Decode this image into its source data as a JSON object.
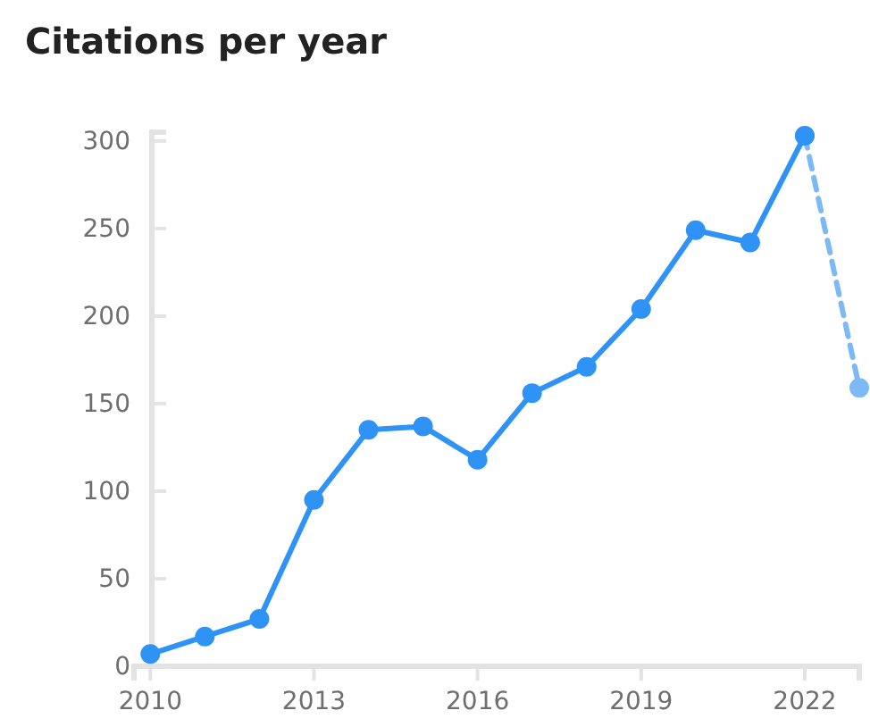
{
  "chart_data": {
    "type": "line",
    "title": "Citations per year",
    "x": [
      2010,
      2011,
      2012,
      2013,
      2014,
      2015,
      2016,
      2017,
      2018,
      2019,
      2020,
      2021,
      2022
    ],
    "series": [
      {
        "color": "#2f93f5",
        "values": [
          7,
          17,
          27,
          95,
          135,
          137,
          118,
          156,
          171,
          204,
          249,
          242,
          303
        ]
      },
      {
        "color": "#7db9f5",
        "x": [
          2022,
          2023
        ],
        "values": [
          303,
          159
        ],
        "line_style": "dashed"
      }
    ],
    "xlim": [
      2009.7,
      2023
    ],
    "xticks": [
      2010,
      2013,
      2016,
      2019,
      2022
    ],
    "ylim": [
      0,
      305
    ],
    "yticks": [
      0,
      50,
      100,
      150,
      200,
      250,
      300
    ],
    "grid": false,
    "marker": "circle",
    "line_style": "solid"
  }
}
